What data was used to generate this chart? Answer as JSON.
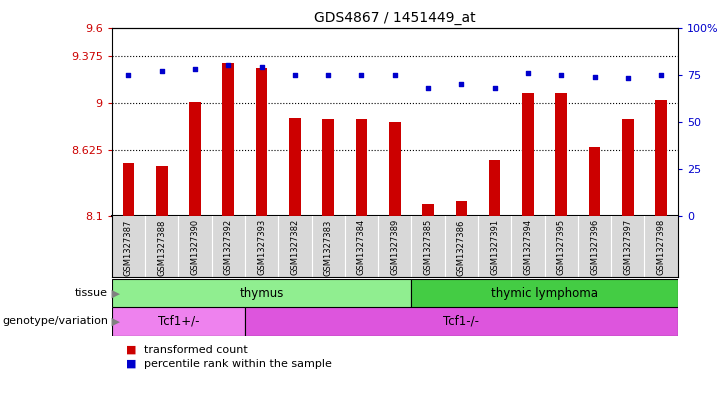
{
  "title": "GDS4867 / 1451449_at",
  "samples": [
    "GSM1327387",
    "GSM1327388",
    "GSM1327390",
    "GSM1327392",
    "GSM1327393",
    "GSM1327382",
    "GSM1327383",
    "GSM1327384",
    "GSM1327389",
    "GSM1327385",
    "GSM1327386",
    "GSM1327391",
    "GSM1327394",
    "GSM1327395",
    "GSM1327396",
    "GSM1327397",
    "GSM1327398"
  ],
  "red_values": [
    8.52,
    8.5,
    9.01,
    9.32,
    9.28,
    8.88,
    8.87,
    8.87,
    8.85,
    8.2,
    8.22,
    8.55,
    9.08,
    9.08,
    8.65,
    8.87,
    9.02
  ],
  "blue_values": [
    75,
    77,
    78,
    80,
    79,
    75,
    75,
    75,
    75,
    68,
    70,
    68,
    76,
    75,
    74,
    73,
    75
  ],
  "ylim_left": [
    8.1,
    9.6
  ],
  "ylim_right": [
    0,
    100
  ],
  "yticks_left": [
    8.1,
    8.625,
    9.0,
    9.375,
    9.6
  ],
  "ytick_labels_left": [
    "8.1",
    "8.625",
    "9",
    "9.375",
    "9.6"
  ],
  "yticks_right": [
    0,
    25,
    50,
    75,
    100
  ],
  "ytick_labels_right": [
    "0",
    "25",
    "50",
    "75",
    "100%"
  ],
  "hlines": [
    8.625,
    9.0,
    9.375
  ],
  "tissue_groups": [
    {
      "label": "thymus",
      "start": 0,
      "end": 9,
      "color": "#90EE90"
    },
    {
      "label": "thymic lymphoma",
      "start": 9,
      "end": 17,
      "color": "#44CC44"
    }
  ],
  "genotype_groups": [
    {
      "label": "Tcf1+/-",
      "start": 0,
      "end": 4,
      "color": "#EE82EE"
    },
    {
      "label": "Tcf1-/-",
      "start": 4,
      "end": 17,
      "color": "#DD55DD"
    }
  ],
  "legend_items": [
    {
      "color": "#CC0000",
      "label": "transformed count"
    },
    {
      "color": "#0000CC",
      "label": "percentile rank within the sample"
    }
  ],
  "bar_color": "#CC0000",
  "dot_color": "#0000CC",
  "bar_width": 0.35,
  "label_fontsize": 7,
  "tick_label_color_left": "#CC0000",
  "tick_label_color_right": "#0000CC",
  "sample_bg_color": "#d8d8d8",
  "tissue_label": "tissue",
  "geno_label": "genotype/variation"
}
